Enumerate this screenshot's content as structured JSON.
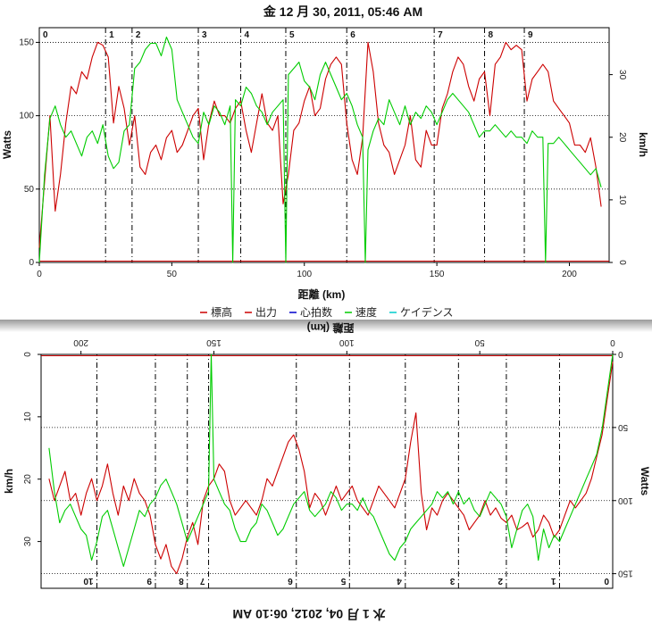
{
  "chart_data": [
    {
      "type": "line",
      "title": "金 12 月 30, 2011, 05:46 AM",
      "xlabel": "距離 (km)",
      "ylabel_left": "Watts",
      "ylabel_right": "km/h",
      "xlim": [
        0,
        215
      ],
      "ylim_left": [
        0,
        160
      ],
      "ylim_right": [
        0,
        37.5
      ],
      "x_ticks": [
        "0",
        "50",
        "100",
        "150",
        "200"
      ],
      "y_ticks_left": [
        "0",
        "50",
        "100",
        "150"
      ],
      "y_ticks_right": [
        "0",
        "10",
        "20",
        "30"
      ],
      "laps": [
        {
          "label": "0",
          "x": 0
        },
        {
          "label": "1",
          "x": 25
        },
        {
          "label": "2",
          "x": 35
        },
        {
          "label": "3",
          "x": 60
        },
        {
          "label": "4",
          "x": 76
        },
        {
          "label": "5",
          "x": 93
        },
        {
          "label": "6",
          "x": 116
        },
        {
          "label": "7",
          "x": 149
        },
        {
          "label": "8",
          "x": 168
        },
        {
          "label": "9",
          "x": 183
        }
      ],
      "legend": [
        "標高",
        "出力",
        "心拍数",
        "速度",
        "ケイデンス"
      ],
      "legend_colors": [
        "#cc0000",
        "#cc0000",
        "#0000cc",
        "#00cc00",
        "#00cccc"
      ],
      "series": [
        {
          "name": "出力",
          "color": "#cc0000",
          "axis": "left",
          "x": [
            0,
            2,
            4,
            6,
            8,
            10,
            12,
            14,
            16,
            18,
            20,
            22,
            24,
            26,
            28,
            30,
            32,
            34,
            36,
            38,
            40,
            42,
            44,
            46,
            48,
            50,
            52,
            54,
            56,
            58,
            60,
            62,
            64,
            66,
            68,
            70,
            72,
            74,
            76,
            78,
            80,
            82,
            84,
            86,
            88,
            90,
            92,
            94,
            96,
            98,
            100,
            102,
            104,
            106,
            108,
            110,
            112,
            114,
            116,
            118,
            120,
            122,
            124,
            126,
            128,
            130,
            132,
            134,
            136,
            138,
            140,
            142,
            144,
            146,
            148,
            150,
            152,
            154,
            156,
            158,
            160,
            162,
            164,
            166,
            168,
            170,
            172,
            174,
            176,
            178,
            180,
            182,
            184,
            186,
            188,
            190,
            192,
            194,
            196,
            198,
            200,
            202,
            204,
            206,
            208,
            210,
            212
          ],
          "values": [
            10,
            55,
            100,
            35,
            60,
            95,
            120,
            115,
            130,
            125,
            140,
            150,
            148,
            140,
            95,
            120,
            105,
            80,
            100,
            65,
            60,
            75,
            80,
            70,
            85,
            90,
            75,
            80,
            90,
            100,
            105,
            70,
            95,
            110,
            100,
            100,
            95,
            105,
            110,
            90,
            75,
            95,
            115,
            95,
            90,
            100,
            40,
            60,
            90,
            95,
            110,
            120,
            100,
            105,
            125,
            135,
            140,
            135,
            95,
            70,
            60,
            85,
            150,
            130,
            95,
            80,
            75,
            60,
            70,
            80,
            100,
            70,
            65,
            90,
            80,
            80,
            105,
            115,
            130,
            140,
            135,
            120,
            110,
            125,
            130,
            100,
            135,
            140,
            150,
            145,
            148,
            145,
            110,
            125,
            130,
            135,
            130,
            110,
            105,
            100,
            95,
            80,
            80,
            75,
            85,
            65,
            38
          ]
        },
        {
          "name": "速度",
          "color": "#00cc00",
          "axis": "right",
          "x": [
            0,
            2,
            4,
            6,
            8,
            10,
            12,
            14,
            16,
            18,
            20,
            22,
            24,
            26,
            28,
            30,
            32,
            34,
            36,
            38,
            40,
            42,
            44,
            46,
            48,
            50,
            52,
            54,
            56,
            58,
            60,
            62,
            64,
            66,
            68,
            70,
            72,
            73,
            74,
            76,
            78,
            80,
            82,
            84,
            86,
            88,
            90,
            92,
            93,
            94,
            96,
            98,
            100,
            102,
            104,
            106,
            108,
            110,
            112,
            114,
            116,
            118,
            120,
            122,
            123,
            124,
            126,
            128,
            130,
            132,
            134,
            136,
            138,
            140,
            142,
            144,
            146,
            148,
            150,
            152,
            154,
            156,
            158,
            160,
            162,
            164,
            166,
            168,
            170,
            172,
            174,
            176,
            178,
            180,
            182,
            184,
            186,
            188,
            190,
            191,
            192,
            194,
            196,
            198,
            200,
            202,
            204,
            206,
            208,
            210,
            212
          ],
          "values": [
            0,
            14,
            23,
            25,
            22,
            20,
            21,
            19,
            17,
            20,
            21,
            19,
            22,
            17,
            15,
            16,
            21,
            22,
            31,
            32,
            34,
            35,
            35,
            33,
            36,
            34,
            26,
            24,
            22,
            20,
            19,
            24,
            22,
            25,
            24,
            22,
            25,
            0,
            26,
            25,
            28,
            27,
            25,
            24,
            22,
            24,
            25,
            26,
            0,
            30,
            31,
            32,
            29,
            28,
            26,
            30,
            32,
            30,
            28,
            26,
            27,
            25,
            22,
            20,
            0,
            18,
            21,
            23,
            22,
            26,
            24,
            22,
            25,
            22,
            24,
            23,
            25,
            24,
            22,
            24,
            26,
            27,
            26,
            25,
            24,
            22,
            20,
            21,
            21,
            22,
            21,
            20,
            21,
            20,
            20,
            19,
            21,
            20,
            20,
            0,
            19,
            19,
            20,
            19,
            18,
            17,
            16,
            15,
            14,
            15,
            12
          ]
        }
      ]
    },
    {
      "type": "line",
      "title": "水 1 月 04, 2012, 06:10 AM",
      "xlabel": "距離 (km)",
      "ylabel_left": "Watts",
      "ylabel_right": "km/h",
      "xlim": [
        0,
        215
      ],
      "ylim_left": [
        0,
        160
      ],
      "ylim_right": [
        0,
        37.5
      ],
      "x_ticks": [
        "0",
        "50",
        "100",
        "150",
        "200"
      ],
      "y_ticks_left": [
        "0",
        "50",
        "100",
        "150"
      ],
      "y_ticks_right": [
        "0",
        "10",
        "20",
        "30"
      ],
      "laps": [
        {
          "label": "0",
          "x": 0
        },
        {
          "label": "1",
          "x": 20
        },
        {
          "label": "2",
          "x": 40
        },
        {
          "label": "3",
          "x": 58
        },
        {
          "label": "4",
          "x": 78
        },
        {
          "label": "5",
          "x": 99
        },
        {
          "label": "6",
          "x": 119
        },
        {
          "label": "7",
          "x": 152
        },
        {
          "label": "8",
          "x": 160
        },
        {
          "label": "9",
          "x": 172
        },
        {
          "label": "10",
          "x": 194
        }
      ],
      "series": [
        {
          "name": "出力",
          "color": "#cc0000",
          "axis": "left",
          "x": [
            0,
            2,
            4,
            6,
            8,
            10,
            12,
            14,
            16,
            18,
            20,
            22,
            24,
            26,
            28,
            30,
            32,
            34,
            36,
            38,
            40,
            42,
            44,
            46,
            48,
            50,
            52,
            54,
            56,
            58,
            60,
            62,
            64,
            66,
            68,
            70,
            72,
            74,
            76,
            78,
            80,
            82,
            84,
            86,
            88,
            90,
            92,
            94,
            96,
            98,
            100,
            102,
            104,
            106,
            108,
            110,
            112,
            114,
            116,
            118,
            120,
            122,
            124,
            126,
            128,
            130,
            132,
            134,
            136,
            138,
            140,
            142,
            144,
            146,
            148,
            150,
            152,
            154,
            156,
            158,
            160,
            162,
            164,
            166,
            168,
            170,
            172,
            174,
            176,
            178,
            180,
            182,
            184,
            186,
            188,
            190,
            192,
            194,
            196,
            198,
            200,
            202,
            204,
            206,
            208,
            210,
            212
          ],
          "values": [
            5,
            30,
            55,
            70,
            85,
            95,
            100,
            105,
            100,
            110,
            120,
            125,
            115,
            110,
            120,
            125,
            115,
            118,
            120,
            110,
            115,
            112,
            105,
            110,
            100,
            110,
            115,
            120,
            110,
            105,
            100,
            95,
            100,
            110,
            105,
            120,
            95,
            40,
            60,
            85,
            95,
            105,
            100,
            95,
            90,
            100,
            110,
            105,
            100,
            90,
            95,
            100,
            90,
            100,
            110,
            100,
            95,
            105,
            80,
            65,
            55,
            60,
            70,
            80,
            90,
            85,
            100,
            110,
            105,
            100,
            105,
            110,
            100,
            80,
            75,
            85,
            90,
            100,
            130,
            115,
            125,
            140,
            150,
            145,
            130,
            140,
            130,
            110,
            100,
            95,
            85,
            100,
            90,
            110,
            95,
            75,
            90,
            100,
            85,
            95,
            110,
            95,
            100,
            80,
            90,
            100,
            85
          ]
        },
        {
          "name": "速度",
          "color": "#00cc00",
          "axis": "right",
          "x": [
            0,
            2,
            4,
            6,
            8,
            10,
            12,
            14,
            16,
            18,
            20,
            22,
            24,
            26,
            28,
            30,
            32,
            34,
            36,
            38,
            40,
            42,
            44,
            46,
            48,
            50,
            52,
            54,
            56,
            58,
            60,
            62,
            64,
            66,
            68,
            70,
            72,
            74,
            76,
            78,
            80,
            82,
            84,
            86,
            88,
            90,
            92,
            94,
            96,
            98,
            100,
            102,
            104,
            106,
            108,
            110,
            112,
            114,
            116,
            118,
            120,
            122,
            124,
            126,
            128,
            130,
            132,
            134,
            136,
            138,
            140,
            142,
            144,
            146,
            148,
            150,
            151,
            152,
            154,
            156,
            158,
            160,
            162,
            164,
            166,
            168,
            170,
            172,
            174,
            176,
            178,
            180,
            182,
            184,
            186,
            188,
            190,
            192,
            194,
            196,
            198,
            200,
            202,
            204,
            206,
            208,
            210,
            212
          ],
          "values": [
            0,
            6,
            12,
            16,
            18,
            20,
            22,
            24,
            26,
            28,
            30,
            29,
            31,
            28,
            33,
            26,
            24,
            25,
            28,
            31,
            26,
            24,
            23,
            22,
            24,
            26,
            25,
            23,
            24,
            22,
            24,
            22,
            23,
            22,
            24,
            25,
            26,
            27,
            28,
            30,
            31,
            33,
            32,
            30,
            28,
            26,
            25,
            23,
            25,
            24,
            24,
            25,
            23,
            22,
            24,
            25,
            26,
            25,
            22,
            23,
            24,
            26,
            28,
            29,
            27,
            25,
            24,
            27,
            28,
            30,
            30,
            28,
            25,
            24,
            22,
            20,
            0,
            22,
            24,
            26,
            28,
            30,
            27,
            24,
            22,
            20,
            21,
            23,
            24,
            26,
            25,
            28,
            31,
            34,
            31,
            28,
            25,
            26,
            30,
            33,
            29,
            28,
            26,
            24,
            25,
            27,
            22,
            15
          ]
        }
      ]
    }
  ]
}
